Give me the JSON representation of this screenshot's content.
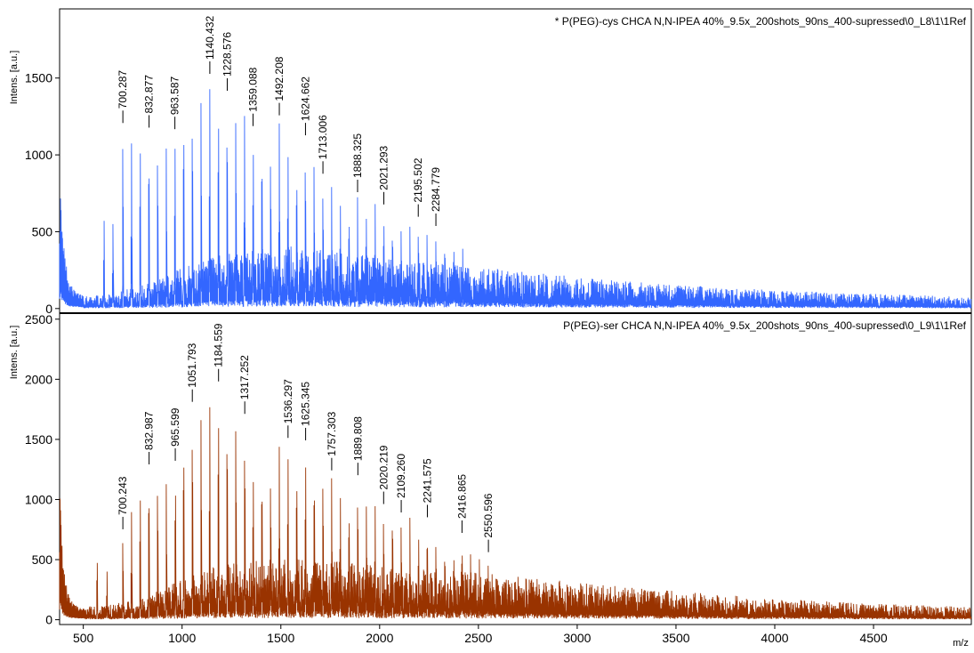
{
  "chart_data": [
    {
      "type": "line",
      "title": "* P(PEG)-cys CHCA N,N-IPEA 40%_9.5x_200shots_90ns_400-supressed\\0_L8\\1\\1Ref",
      "ylabel": "Intens. [a.u.]",
      "xlabel": "m/z",
      "xlim": [
        380,
        4995
      ],
      "ylim": [
        -30,
        1950
      ],
      "yticks": [
        0,
        500,
        1000,
        1500
      ],
      "color": "#3366ff",
      "background_level": [
        [
          380,
          60
        ],
        [
          450,
          70
        ],
        [
          600,
          60
        ],
        [
          800,
          110
        ],
        [
          1000,
          190
        ],
        [
          1200,
          250
        ],
        [
          1400,
          290
        ],
        [
          1600,
          290
        ],
        [
          1800,
          265
        ],
        [
          2000,
          240
        ],
        [
          2200,
          220
        ],
        [
          2500,
          195
        ],
        [
          2800,
          165
        ],
        [
          3200,
          130
        ],
        [
          3600,
          105
        ],
        [
          4000,
          85
        ],
        [
          4500,
          68
        ],
        [
          4995,
          55
        ]
      ],
      "low_mass_tail": [
        [
          385,
          770
        ],
        [
          395,
          500
        ],
        [
          410,
          320
        ],
        [
          430,
          170
        ],
        [
          460,
          110
        ],
        [
          500,
          95
        ]
      ],
      "peaks": [
        [
          605,
          620
        ],
        [
          650,
          560
        ],
        [
          700,
          1190
        ],
        [
          744,
          1080
        ],
        [
          788,
          1170
        ],
        [
          832,
          1160
        ],
        [
          876,
          1120
        ],
        [
          920,
          1080
        ],
        [
          964,
          1150
        ],
        [
          1008,
          1380
        ],
        [
          1052,
          1400
        ],
        [
          1096,
          1450
        ],
        [
          1140,
          1510
        ],
        [
          1184,
          1440
        ],
        [
          1228,
          1400
        ],
        [
          1272,
          1370
        ],
        [
          1316,
          1270
        ],
        [
          1360,
          1170
        ],
        [
          1404,
          1170
        ],
        [
          1448,
          1100
        ],
        [
          1492,
          1240
        ],
        [
          1536,
          1100
        ],
        [
          1580,
          1010
        ],
        [
          1624,
          1110
        ],
        [
          1668,
          990
        ],
        [
          1713,
          860
        ],
        [
          1757,
          820
        ],
        [
          1801,
          740
        ],
        [
          1845,
          690
        ],
        [
          1888,
          740
        ],
        [
          1932,
          690
        ],
        [
          1977,
          720
        ],
        [
          2021,
          660
        ],
        [
          2065,
          590
        ],
        [
          2109,
          570
        ],
        [
          2153,
          540
        ],
        [
          2196,
          580
        ],
        [
          2240,
          510
        ],
        [
          2285,
          520
        ],
        [
          2330,
          480
        ],
        [
          2375,
          470
        ],
        [
          2420,
          440
        ]
      ],
      "peak_labels": [
        {
          "mz": 700.287,
          "text": "700.287"
        },
        {
          "mz": 832.877,
          "text": "832.877"
        },
        {
          "mz": 963.587,
          "text": "963.587"
        },
        {
          "mz": 1140.432,
          "text": "1140.432"
        },
        {
          "mz": 1228.576,
          "text": "1228.576"
        },
        {
          "mz": 1359.088,
          "text": "1359.088"
        },
        {
          "mz": 1492.208,
          "text": "1492.208"
        },
        {
          "mz": 1624.662,
          "text": "1624.662"
        },
        {
          "mz": 1713.006,
          "text": "1713.006"
        },
        {
          "mz": 1888.325,
          "text": "1888.325"
        },
        {
          "mz": 2021.293,
          "text": "2021.293"
        },
        {
          "mz": 2195.502,
          "text": "2195.502"
        },
        {
          "mz": 2284.779,
          "text": "2284.779"
        }
      ]
    },
    {
      "type": "line",
      "title": "P(PEG)-ser CHCA N,N-IPEA 40%_9.5x_200shots_90ns_400-supressed\\0_L9\\1\\1Ref",
      "ylabel": "Intens. [a.u.]",
      "xlabel": "m/z",
      "xlim": [
        380,
        4995
      ],
      "ylim": [
        -40,
        2550
      ],
      "yticks": [
        0,
        500,
        1000,
        1500,
        2000,
        2500
      ],
      "xticks": [
        500,
        1000,
        1500,
        2000,
        2500,
        3000,
        3500,
        4000,
        4500
      ],
      "color": "#993300",
      "background_level": [
        [
          380,
          70
        ],
        [
          450,
          80
        ],
        [
          600,
          80
        ],
        [
          800,
          130
        ],
        [
          1000,
          240
        ],
        [
          1200,
          330
        ],
        [
          1400,
          360
        ],
        [
          1600,
          360
        ],
        [
          1800,
          345
        ],
        [
          2000,
          320
        ],
        [
          2200,
          300
        ],
        [
          2500,
          280
        ],
        [
          2800,
          250
        ],
        [
          3200,
          200
        ],
        [
          3600,
          160
        ],
        [
          4000,
          125
        ],
        [
          4500,
          95
        ],
        [
          4995,
          75
        ]
      ],
      "low_mass_tail": [
        [
          385,
          1020
        ],
        [
          395,
          500
        ],
        [
          410,
          340
        ],
        [
          430,
          180
        ],
        [
          460,
          120
        ],
        [
          500,
          100
        ]
      ],
      "peaks": [
        [
          570,
          560
        ],
        [
          620,
          420
        ],
        [
          700,
          730
        ],
        [
          744,
          900
        ],
        [
          788,
          1150
        ],
        [
          832,
          1270
        ],
        [
          876,
          1240
        ],
        [
          920,
          1170
        ],
        [
          966,
          1300
        ],
        [
          1008,
          1640
        ],
        [
          1052,
          1790
        ],
        [
          1096,
          1800
        ],
        [
          1140,
          1870
        ],
        [
          1184,
          1960
        ],
        [
          1228,
          1840
        ],
        [
          1272,
          1780
        ],
        [
          1317,
          1690
        ],
        [
          1360,
          1340
        ],
        [
          1404,
          1360
        ],
        [
          1448,
          1300
        ],
        [
          1492,
          1480
        ],
        [
          1536,
          1490
        ],
        [
          1580,
          1400
        ],
        [
          1625,
          1470
        ],
        [
          1669,
          1360
        ],
        [
          1713,
          1310
        ],
        [
          1757,
          1220
        ],
        [
          1801,
          1120
        ],
        [
          1845,
          1040
        ],
        [
          1889,
          1180
        ],
        [
          1933,
          1020
        ],
        [
          1977,
          1000
        ],
        [
          2020,
          940
        ],
        [
          2065,
          990
        ],
        [
          2109,
          870
        ],
        [
          2153,
          860
        ],
        [
          2197,
          780
        ],
        [
          2241,
          830
        ],
        [
          2285,
          720
        ],
        [
          2330,
          650
        ],
        [
          2375,
          630
        ],
        [
          2417,
          700
        ],
        [
          2460,
          560
        ],
        [
          2505,
          540
        ],
        [
          2550,
          540
        ],
        [
          2595,
          460
        ],
        [
          2640,
          420
        ]
      ],
      "peak_labels": [
        {
          "mz": 700.243,
          "text": "700.243"
        },
        {
          "mz": 832.987,
          "text": "832.987"
        },
        {
          "mz": 965.599,
          "text": "965.599"
        },
        {
          "mz": 1051.793,
          "text": "1051.793"
        },
        {
          "mz": 1184.559,
          "text": "1184.559"
        },
        {
          "mz": 1317.252,
          "text": "1317.252"
        },
        {
          "mz": 1536.297,
          "text": "1536.297"
        },
        {
          "mz": 1625.345,
          "text": "1625.345"
        },
        {
          "mz": 1757.303,
          "text": "1757.303"
        },
        {
          "mz": 1889.808,
          "text": "1889.808"
        },
        {
          "mz": 2020.219,
          "text": "2020.219"
        },
        {
          "mz": 2109.26,
          "text": "2109.260"
        },
        {
          "mz": 2241.575,
          "text": "2241.575"
        },
        {
          "mz": 2416.865,
          "text": "2416.865"
        },
        {
          "mz": 2550.596,
          "text": "2550.596"
        }
      ]
    }
  ]
}
